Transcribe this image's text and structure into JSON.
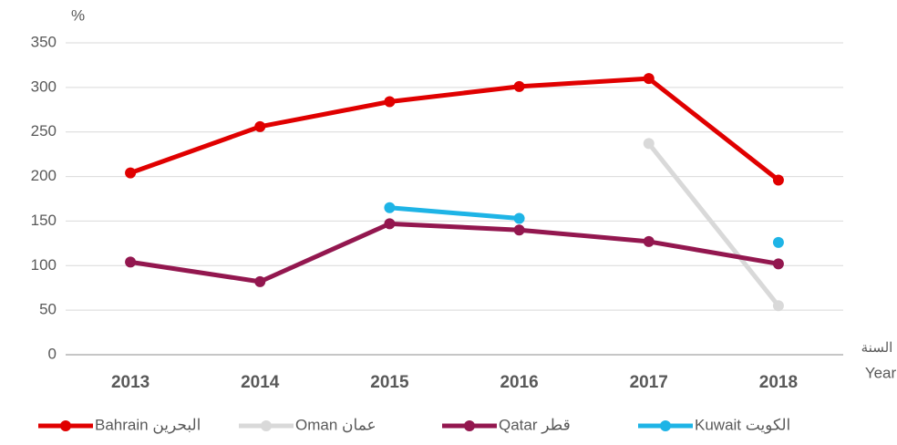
{
  "chart_data": {
    "type": "line",
    "y_axis_label": "%",
    "x_axis_label": {
      "ar": "السنة",
      "en": "Year"
    },
    "categories": [
      "2013",
      "2014",
      "2015",
      "2016",
      "2017",
      "2018"
    ],
    "series": [
      {
        "name": "Bahrain البحرين",
        "color": "#e00000",
        "values": [
          204,
          256,
          284,
          301,
          310,
          196
        ]
      },
      {
        "name": "Oman عمان",
        "color": "#d9d9d9",
        "values": [
          null,
          null,
          null,
          null,
          237,
          55
        ]
      },
      {
        "name": "Qatar قطر",
        "color": "#93174f",
        "values": [
          104,
          82,
          147,
          140,
          127,
          102
        ]
      },
      {
        "name": "Kuwait الكويت",
        "color": "#1eb4e6",
        "values": [
          null,
          null,
          165,
          153,
          null,
          126
        ]
      }
    ],
    "ylim": [
      0,
      350
    ],
    "yticks": [
      0,
      50,
      100,
      150,
      200,
      250,
      300,
      350
    ],
    "grid": true,
    "legend": "bottom"
  }
}
